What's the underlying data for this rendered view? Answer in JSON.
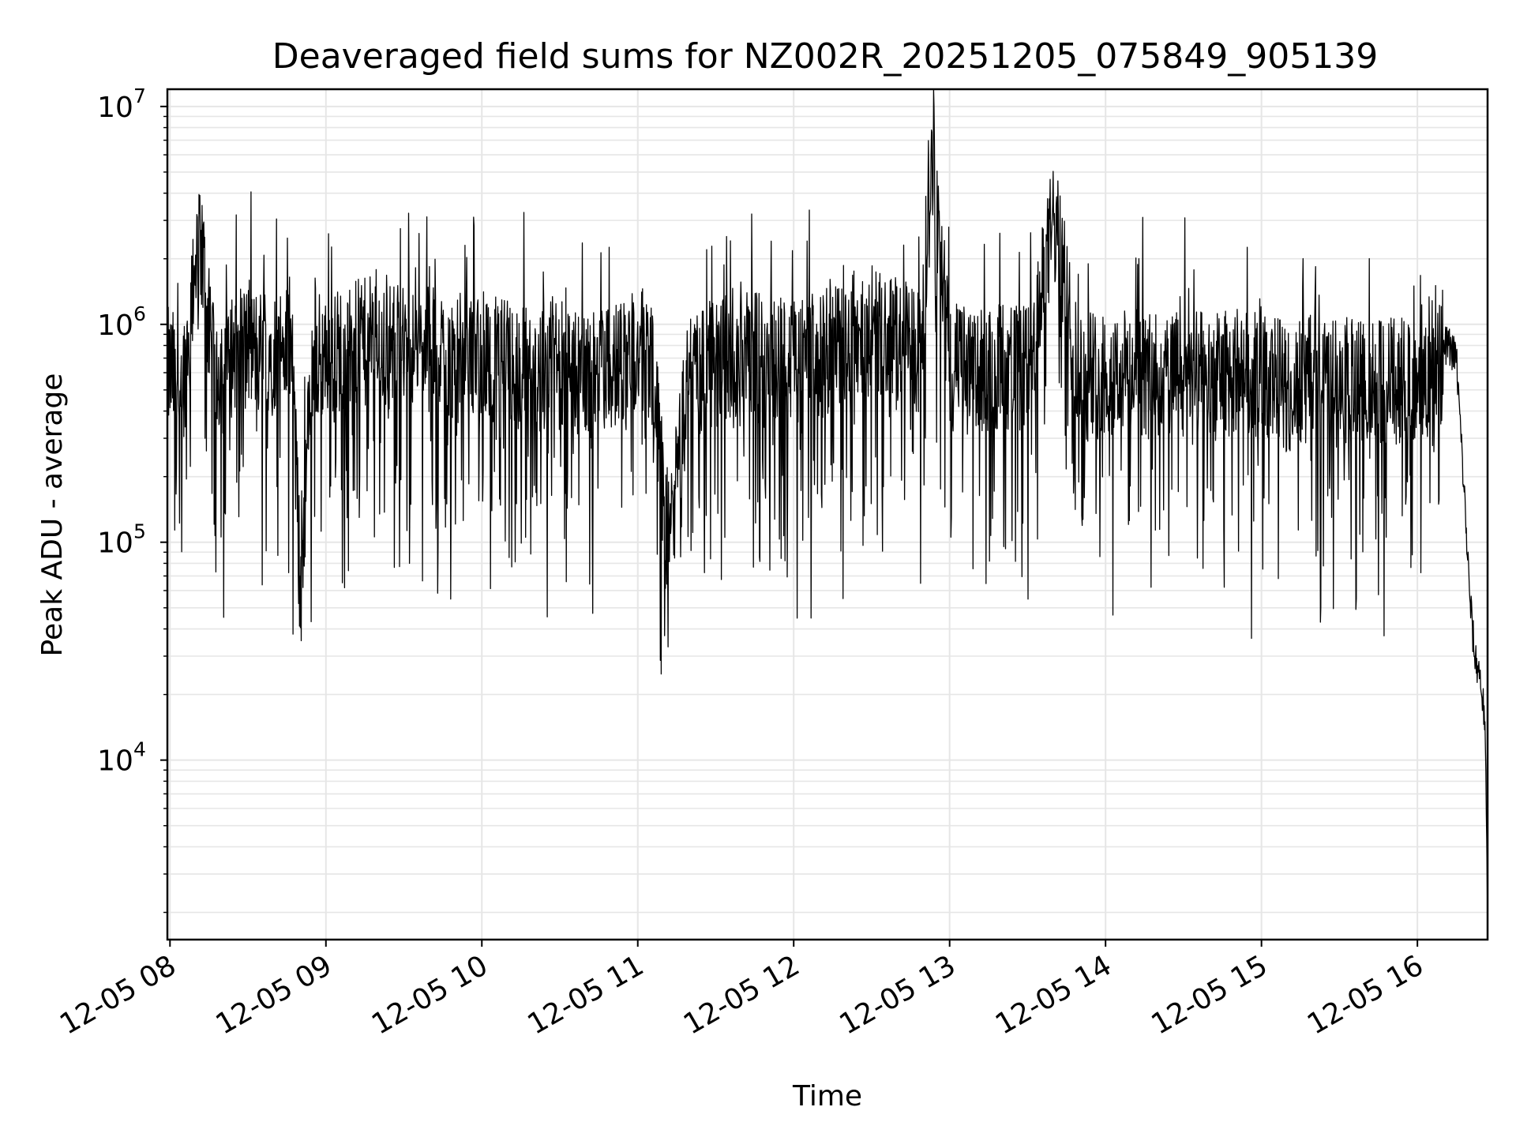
{
  "chart_data": {
    "type": "line",
    "title": "Deaveraged field sums for NZ002R_20251205_075849_905139",
    "xlabel": "Time",
    "ylabel": "Peak ADU - average",
    "yscale": "log",
    "ylim": [
      1500,
      12000000
    ],
    "xlim": [
      "12-05 07:59",
      "12-05 16:27"
    ],
    "grid": true,
    "x_ticks": [
      "12-05 08",
      "12-05 09",
      "12-05 10",
      "12-05 11",
      "12-05 12",
      "12-05 13",
      "12-05 14",
      "12-05 15",
      "12-05 16"
    ],
    "y_ticks": [
      {
        "value": 10000,
        "base": "10",
        "exp": "4"
      },
      {
        "value": 100000,
        "base": "10",
        "exp": "5"
      },
      {
        "value": 1000000,
        "base": "10",
        "exp": "6"
      },
      {
        "value": 10000000,
        "base": "10",
        "exp": "7"
      }
    ],
    "line_color": "#000000",
    "grid_color": "#e6e6e6",
    "series": [
      {
        "x": [
          "12-05 07:59",
          "12-05 08:05",
          "12-05 08:12",
          "12-05 08:16",
          "12-05 08:20",
          "12-05 08:26",
          "12-05 08:33",
          "12-05 08:40",
          "12-05 08:47",
          "12-05 08:50",
          "12-05 08:55",
          "12-05 09:02",
          "12-05 09:10",
          "12-05 09:18",
          "12-05 09:26",
          "12-05 09:35",
          "12-05 09:44",
          "12-05 09:52",
          "12-05 10:00",
          "12-05 10:10",
          "12-05 10:20",
          "12-05 10:30",
          "12-05 10:42",
          "12-05 10:55",
          "12-05 11:05",
          "12-05 11:12",
          "12-05 11:20",
          "12-05 11:30",
          "12-05 11:40",
          "12-05 11:50",
          "12-05 12:00",
          "12-05 12:13",
          "12-05 12:25",
          "12-05 12:37",
          "12-05 12:49",
          "12-05 12:53",
          "12-05 13:00",
          "12-05 13:10",
          "12-05 13:22",
          "12-05 13:31",
          "12-05 13:40",
          "12-05 13:50",
          "12-05 14:00",
          "12-05 14:10",
          "12-05 14:20",
          "12-05 14:30",
          "12-05 14:40",
          "12-05 14:50",
          "12-05 15:00",
          "12-05 15:10",
          "12-05 15:20",
          "12-05 15:30",
          "12-05 15:40",
          "12-05 15:50",
          "12-05 16:00",
          "12-05 16:06",
          "12-05 16:10",
          "12-05 16:12",
          "12-05 16:15",
          "12-05 16:18",
          "12-05 16:20",
          "12-05 16:22",
          "12-05 16:24",
          "12-05 16:26",
          "12-05 16:27"
        ],
        "values": [
          650000,
          600000,
          2700000,
          700000,
          650000,
          900000,
          800000,
          850000,
          800000,
          70000,
          750000,
          800000,
          850000,
          900000,
          850000,
          850000,
          800000,
          750000,
          800000,
          700000,
          650000,
          750000,
          600000,
          750000,
          800000,
          100000,
          700000,
          700000,
          850000,
          700000,
          750000,
          800000,
          1000000,
          950000,
          750000,
          7800000,
          700000,
          650000,
          700000,
          650000,
          3300000,
          600000,
          650000,
          650000,
          600000,
          650000,
          600000,
          650000,
          650000,
          550000,
          600000,
          600000,
          550000,
          600000,
          600000,
          650000,
          800000,
          800000,
          700000,
          170000,
          60000,
          30000,
          25000,
          15000,
          1800
        ]
      }
    ]
  }
}
